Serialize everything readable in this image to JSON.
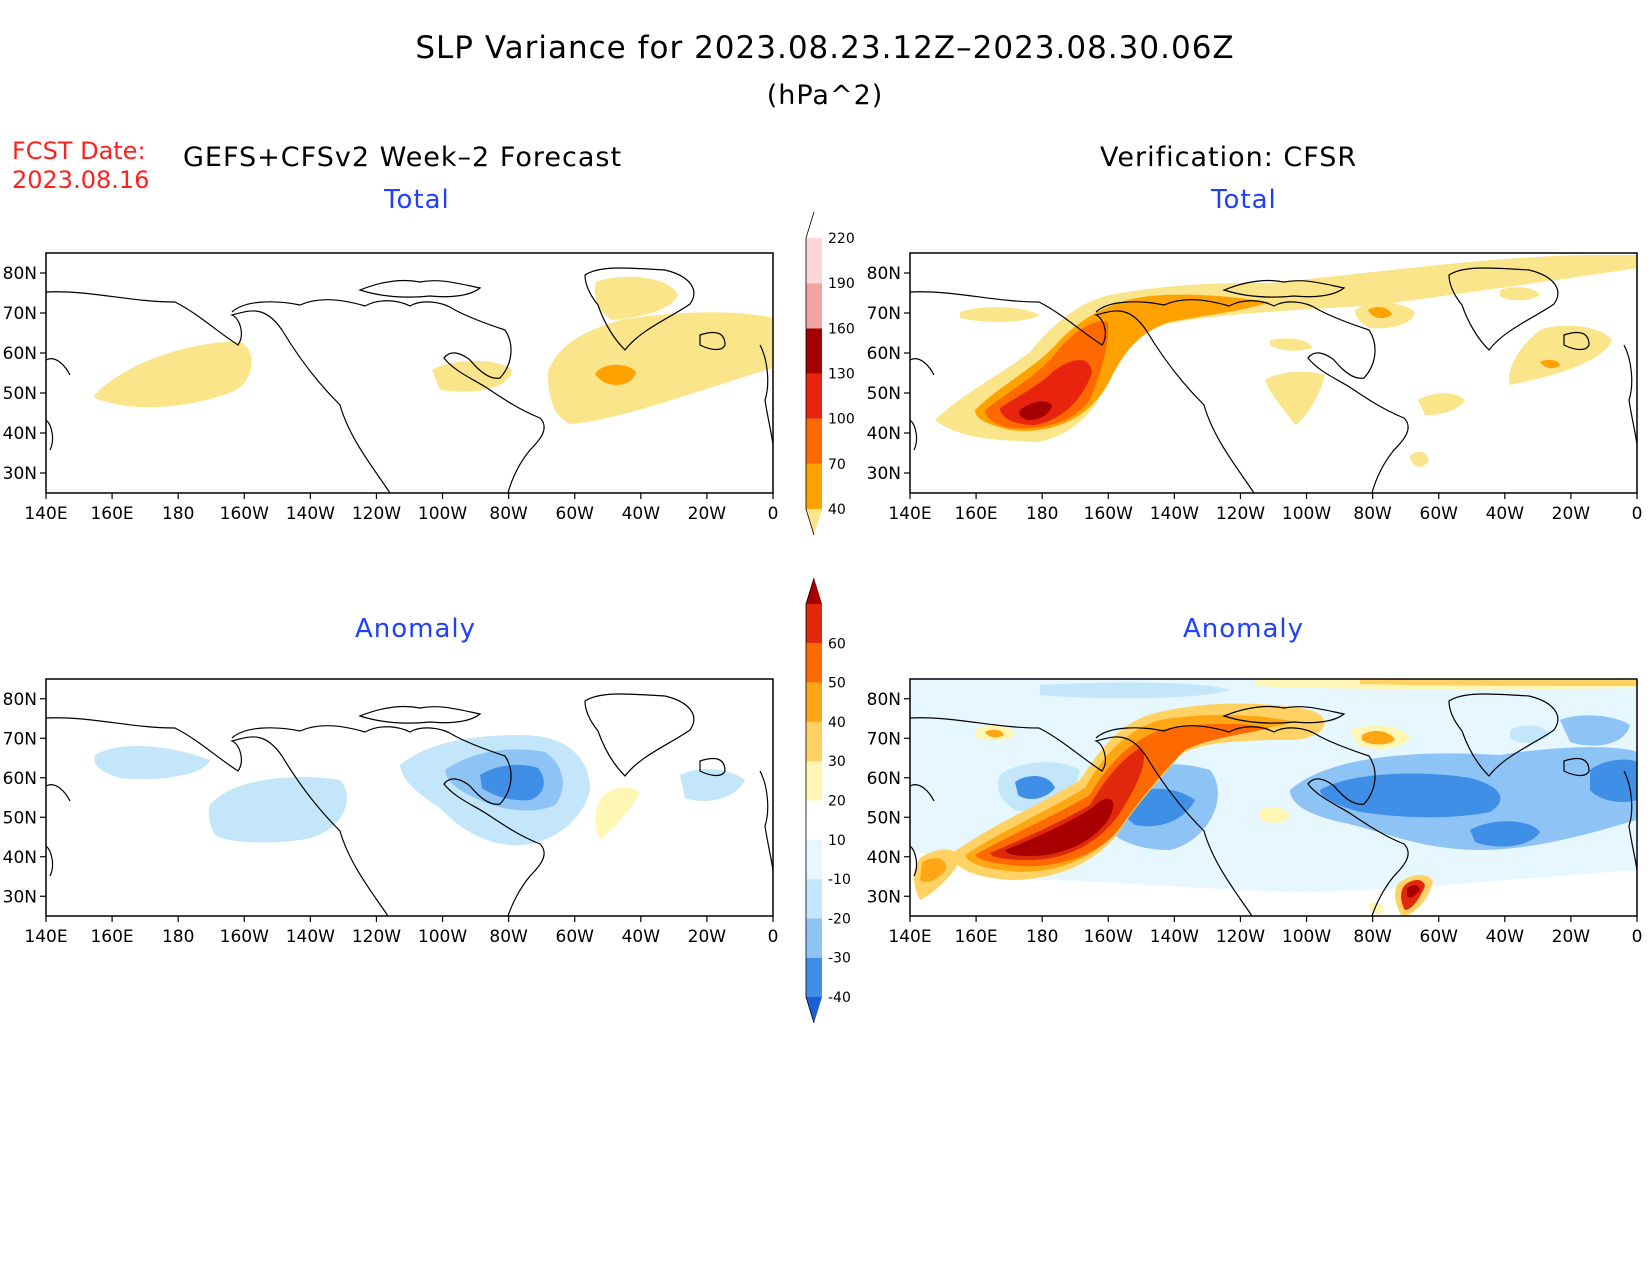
{
  "title": "SLP Variance for 2023.08.23.12Z–2023.08.30.06Z",
  "units": "(hPa^2)",
  "forecast_date_label": "FCST Date:",
  "forecast_date": "2023.08.16",
  "forecast_model": "GEFS+CFSv2 Week–2 Forecast",
  "verification_label": "Verification: CFSR",
  "panels": [
    {
      "id": "fcst-total",
      "title": "Total"
    },
    {
      "id": "verif-total",
      "title": "Total"
    },
    {
      "id": "fcst-anomaly",
      "title": "Anomaly"
    },
    {
      "id": "verif-anomaly",
      "title": "Anomaly"
    }
  ],
  "map_axes": {
    "lon_labels": [
      "140E",
      "160E",
      "180",
      "160W",
      "140W",
      "120W",
      "100W",
      "80W",
      "60W",
      "40W",
      "20W",
      "0"
    ],
    "lat_labels": [
      "30N",
      "40N",
      "50N",
      "60N",
      "70N",
      "80N"
    ],
    "lon_range_deg_east": [
      140,
      360
    ],
    "lat_range_deg": [
      25,
      85
    ]
  },
  "colorbars": {
    "total": {
      "levels": [
        "40",
        "70",
        "100",
        "130",
        "160",
        "190",
        "220"
      ],
      "colors": [
        "#fbe58a",
        "#ffa200",
        "#ff6a00",
        "#e8240f",
        "#a50000",
        "#f4a3a3",
        "#fcd7d7",
        "#ffffff"
      ]
    },
    "anomaly": {
      "levels": [
        "-40",
        "-30",
        "-20",
        "-10",
        "10",
        "20",
        "30",
        "40",
        "50",
        "60"
      ],
      "colors": [
        "#1c5fd4",
        "#3f8fe6",
        "#8ec3f5",
        "#c3e6fa",
        "#e6f7ff",
        "#ffffff",
        "#fff6b4",
        "#ffd263",
        "#ffa614",
        "#ff6a00",
        "#e0290c",
        "#a80000"
      ]
    }
  },
  "colors": {
    "title_red": "#ff2020",
    "panel_title_blue": "#2040ff"
  }
}
